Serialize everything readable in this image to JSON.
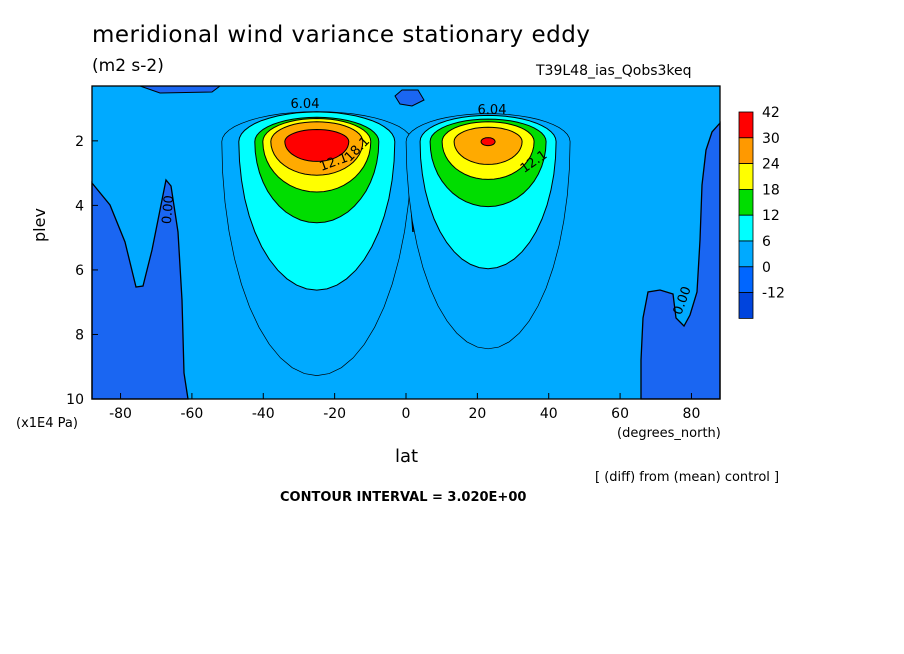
{
  "header": {
    "title": "meridional wind variance  stationary eddy",
    "units": "(m2 s-2)",
    "run": "T39L48_ias_Qobs3keq"
  },
  "footer": {
    "diff_note": "[ (diff) from (mean) control ]",
    "contour_interval": "CONTOUR INTERVAL = 3.020E+00"
  },
  "chart_data": {
    "type": "heatmap",
    "title": "meridional wind variance  stationary eddy",
    "subtitle": "(m2 s-2)",
    "xlabel": "lat",
    "xunits": "(degrees_north)",
    "ylabel": "plev",
    "yunits": "(x1E4 Pa)",
    "xlim": [
      -88,
      88
    ],
    "ylim": [
      10,
      0.3
    ],
    "x_ticks": [
      -80,
      -60,
      -40,
      -20,
      0,
      20,
      40,
      60,
      80
    ],
    "y_ticks": [
      2,
      4,
      6,
      8,
      10
    ],
    "colorbar_levels": [
      42,
      30,
      24,
      18,
      12,
      6,
      0,
      -12
    ],
    "colorbar_colors": [
      "#ff0000",
      "#ff9900",
      "#ffff00",
      "#00dd00",
      "#00ffff",
      "#00aaff",
      "#0066ff",
      "#0044dd"
    ],
    "contour_labels": [
      "6.04",
      "6.04",
      "12.1",
      "12.1",
      "18.1",
      "0.00",
      "0.00"
    ],
    "colors": {
      "background_field": "#00aaff",
      "negative": "#1a66f2",
      "level_6": "#00ffff",
      "level_12": "#00dd00",
      "level_18": "#ffff00",
      "level_24": "#ffaa00",
      "level_30": "#ff9900",
      "max": "#ff0000"
    },
    "maxima": [
      {
        "lat": -25,
        "plev": 1.9,
        "value": 42
      },
      {
        "lat": 23,
        "plev": 1.9,
        "value": 30
      }
    ]
  }
}
